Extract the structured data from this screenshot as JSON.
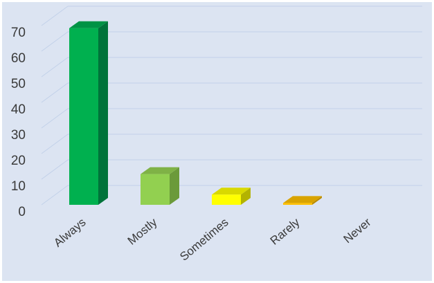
{
  "chart_data": {
    "type": "bar",
    "style": "3d-column",
    "categories": [
      "Always",
      "Mostly",
      "Sometimes",
      "Rarely",
      "Never"
    ],
    "values": [
      69,
      12,
      4,
      0.7,
      0
    ],
    "ylim": [
      0,
      70
    ],
    "yticks": [
      0,
      10,
      20,
      30,
      40,
      50,
      60,
      70
    ],
    "grid": true,
    "legend": "none",
    "colors": {
      "background": "#dce4f2",
      "gridline": "#c2d1e9",
      "bars": [
        {
          "front": "#00b04f",
          "side": "#00733a",
          "top": "#009345"
        },
        {
          "front": "#92d050",
          "side": "#6b9a3a",
          "top": "#7fb246"
        },
        {
          "front": "#ffff00",
          "side": "#b3b300",
          "top": "#d9d900"
        },
        {
          "front": "#ffc000",
          "side": "#b88a00",
          "top": "#d9a300"
        },
        {
          "front": "#c00000",
          "side": "#800000",
          "top": "#a00000"
        }
      ]
    }
  }
}
